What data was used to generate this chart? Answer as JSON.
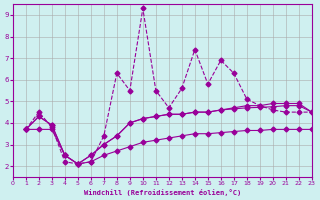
{
  "xlabel": "Windchill (Refroidissement éolien,°C)",
  "ylabel": "",
  "bg_color": "#cff0f0",
  "grid_color": "#aaaaaa",
  "line_color": "#990099",
  "x_min": 0,
  "x_max": 23,
  "y_min": 1.5,
  "y_max": 9.5,
  "x_ticks": [
    0,
    1,
    2,
    3,
    4,
    5,
    6,
    7,
    8,
    9,
    10,
    11,
    12,
    13,
    14,
    15,
    16,
    17,
    18,
    19,
    20,
    21,
    22,
    23
  ],
  "y_ticks": [
    2,
    3,
    4,
    5,
    6,
    7,
    8,
    9
  ],
  "series": [
    [
      3.7,
      4.5,
      3.8,
      2.2,
      2.1,
      2.2,
      3.4,
      6.3,
      5.5,
      9.3,
      5.5,
      4.7,
      5.6,
      7.4,
      5.8,
      6.9,
      6.3,
      5.1,
      4.8,
      4.6,
      4.5,
      4.5,
      4.5
    ],
    [
      3.7,
      4.3,
      3.9,
      2.5,
      2.1,
      2.5,
      3.0,
      3.4,
      4.0,
      4.2,
      4.3,
      4.4,
      4.4,
      4.5,
      4.5,
      4.6,
      4.7,
      4.8,
      4.8,
      4.9,
      4.9,
      4.9,
      4.5
    ],
    [
      3.7,
      4.3,
      3.9,
      2.5,
      2.1,
      2.5,
      3.0,
      3.4,
      4.0,
      4.2,
      4.3,
      4.4,
      4.4,
      4.5,
      4.5,
      4.6,
      4.65,
      4.7,
      4.72,
      4.75,
      4.8,
      4.8,
      4.5
    ],
    [
      3.7,
      3.7,
      3.7,
      2.5,
      2.1,
      2.2,
      2.5,
      2.7,
      2.9,
      3.1,
      3.2,
      3.3,
      3.4,
      3.5,
      3.5,
      3.55,
      3.6,
      3.65,
      3.65,
      3.7,
      3.7,
      3.7,
      3.7
    ]
  ]
}
